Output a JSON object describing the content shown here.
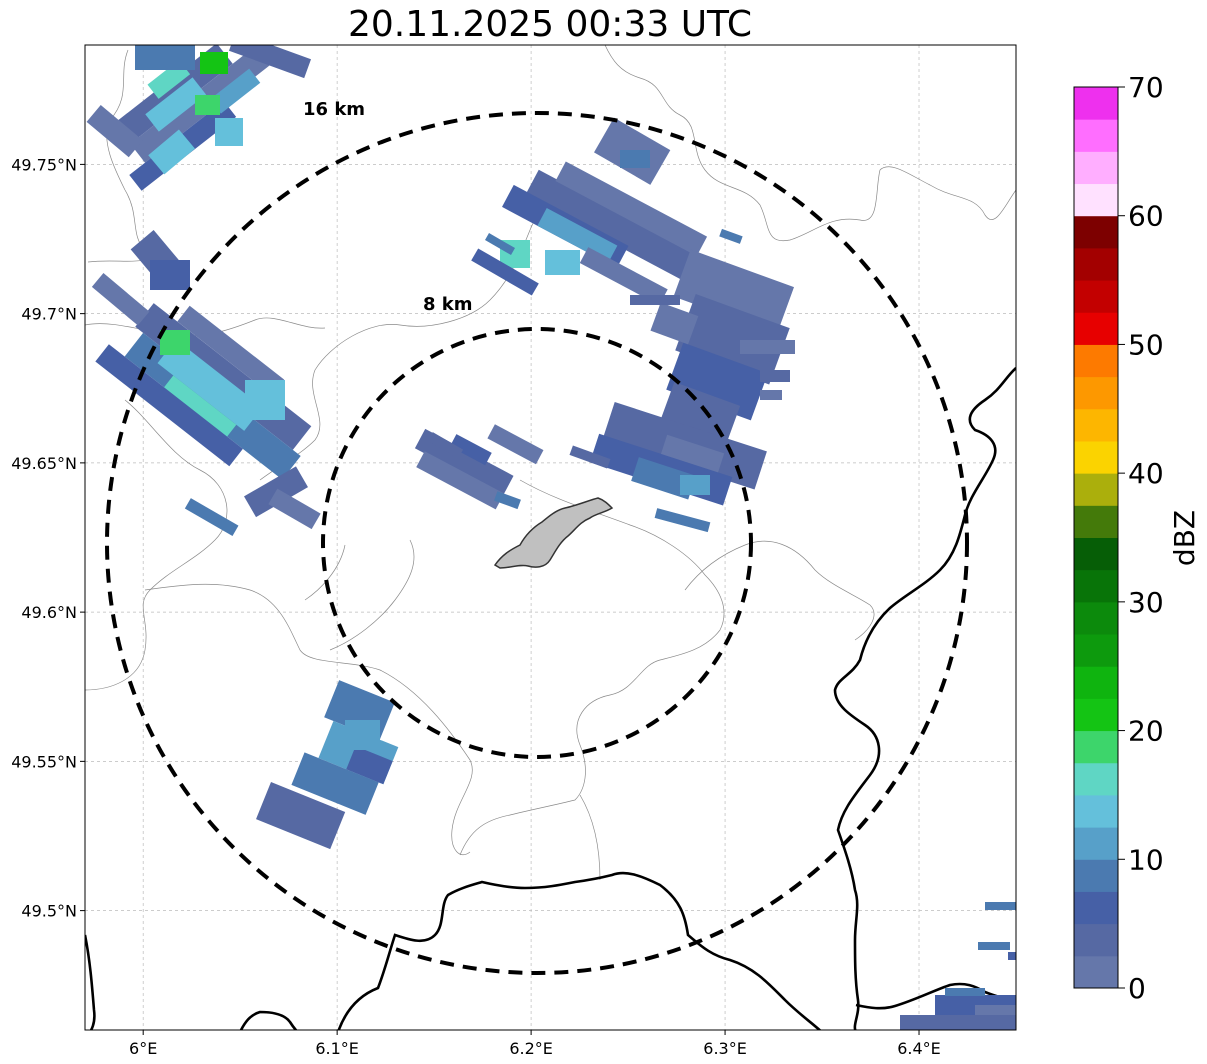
{
  "title": "20.11.2025 00:33 UTC",
  "map": {
    "lon_range": [
      5.97,
      6.45
    ],
    "lat_range": [
      49.46,
      49.79
    ],
    "x_ticks": [
      {
        "lon": 6.0,
        "label": "6°E"
      },
      {
        "lon": 6.1,
        "label": "6.1°E"
      },
      {
        "lon": 6.2,
        "label": "6.2°E"
      },
      {
        "lon": 6.3,
        "label": "6.3°E"
      },
      {
        "lon": 6.4,
        "label": "6.4°E"
      }
    ],
    "y_ticks": [
      {
        "lat": 49.75,
        "label": "49.75°N"
      },
      {
        "lat": 49.7,
        "label": "49.7°N"
      },
      {
        "lat": 49.65,
        "label": "49.65°N"
      },
      {
        "lat": 49.6,
        "label": "49.6°N"
      },
      {
        "lat": 49.55,
        "label": "49.55°N"
      },
      {
        "lat": 49.5,
        "label": "49.5°N"
      }
    ],
    "grid": true,
    "range_rings": [
      {
        "label": "8 km"
      },
      {
        "label": "16 km"
      }
    ]
  },
  "colorbar": {
    "label": "dBZ",
    "ticks": [
      "0",
      "10",
      "20",
      "30",
      "40",
      "50",
      "60",
      "70"
    ],
    "min": 0,
    "max": 70,
    "step": 2.5,
    "colors": [
      "#6577aa",
      "#5669a3",
      "#4660a6",
      "#4b7ab0",
      "#57a0c9",
      "#64c0db",
      "#5fd6c4",
      "#3dd56b",
      "#14c414",
      "#0fb40f",
      "#0d9a0d",
      "#0c8a0c",
      "#087408",
      "#065e06",
      "#447a0a",
      "#abaf0c",
      "#fbd300",
      "#fdb600",
      "#fd9800",
      "#fd7a00",
      "#e70000",
      "#c30000",
      "#a30000",
      "#7d0000",
      "#ffe1ff",
      "#ffaeff",
      "#ff6eff",
      "#ee30ee"
    ]
  }
}
